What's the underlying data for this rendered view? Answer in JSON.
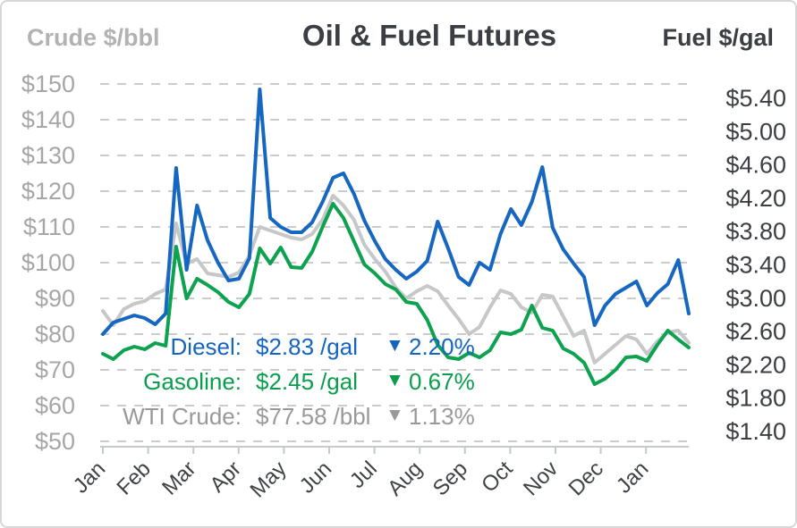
{
  "header": {
    "left_axis_title": "Crude $/bbl",
    "title": "Oil & Fuel Futures",
    "right_axis_title": "Fuel $/gal"
  },
  "legend": {
    "down_glyph": "▼",
    "rows": [
      {
        "name": "Diesel:",
        "value": "$2.83",
        "unit": "/gal",
        "direction": "down",
        "change": "2.20%",
        "color": "#1565c0"
      },
      {
        "name": "Gasoline:",
        "value": "$2.45",
        "unit": "/gal",
        "direction": "down",
        "change": "0.67%",
        "color": "#0b9d4e"
      },
      {
        "name": "WTI Crude:",
        "value": "$77.58",
        "unit": "/bbl",
        "direction": "down",
        "change": "1.13%",
        "color": "#97999c"
      }
    ]
  },
  "chart_data": {
    "type": "line",
    "title": "Oil & Fuel Futures",
    "grid": "dashed-horizontal",
    "resolution": "weekly",
    "x_axis": {
      "labels": [
        "Jan",
        "Feb",
        "Mar",
        "Apr",
        "May",
        "Jun",
        "Jul",
        "Aug",
        "Sep",
        "Oct",
        "Nov",
        "Dec",
        "Jan"
      ],
      "label_rotation_deg": -45
    },
    "left_axis": {
      "title": "Crude $/bbl",
      "ticks": [
        "$150",
        "$140",
        "$130",
        "$120",
        "$110",
        "$100",
        "$90",
        "$80",
        "$70",
        "$60",
        "$50"
      ],
      "range": [
        50,
        150
      ]
    },
    "right_axis": {
      "title": "Fuel $/gal",
      "ticks": [
        "$5.40",
        "$5.00",
        "$4.60",
        "$4.20",
        "$3.80",
        "$3.40",
        "$3.00",
        "$2.60",
        "$2.20",
        "$1.80",
        "$1.40"
      ],
      "range": [
        1.4,
        5.4
      ]
    },
    "series": [
      {
        "name": "WTI Crude",
        "unit": "$/bbl",
        "axis": "left",
        "color": "#c5c7c9",
        "values": [
          86.5,
          82.5,
          87,
          88.5,
          89.25,
          91.25,
          92.5,
          111,
          99.75,
          101,
          97,
          96.5,
          96,
          97.25,
          102,
          110,
          109,
          108,
          107,
          106.5,
          108,
          112,
          118.75,
          116,
          112,
          105,
          101,
          97.5,
          93,
          90,
          92,
          93.5,
          92,
          88,
          84.25,
          80,
          82,
          87.5,
          92.25,
          91.25,
          87.5,
          86,
          91,
          90.5,
          85,
          79.5,
          81,
          72,
          74.5,
          77,
          79.5,
          78.5,
          74.5,
          78,
          80.5,
          81,
          77.58
        ]
      },
      {
        "name": "Gasoline",
        "unit": "$/gal",
        "axis": "right",
        "color": "#0da24f",
        "values": [
          2.38,
          2.32,
          2.42,
          2.46,
          2.43,
          2.5,
          2.47,
          3.58,
          3.0,
          3.22,
          3.15,
          3.07,
          2.96,
          2.9,
          3.05,
          3.56,
          3.39,
          3.57,
          3.35,
          3.34,
          3.52,
          3.8,
          4.06,
          3.9,
          3.64,
          3.38,
          3.28,
          3.16,
          3.1,
          2.96,
          2.94,
          2.76,
          2.48,
          2.34,
          2.32,
          2.39,
          2.34,
          2.42,
          2.62,
          2.6,
          2.65,
          2.92,
          2.67,
          2.64,
          2.44,
          2.38,
          2.28,
          2.04,
          2.1,
          2.2,
          2.34,
          2.35,
          2.3,
          2.48,
          2.64,
          2.54,
          2.45
        ]
      },
      {
        "name": "Diesel",
        "unit": "$/gal",
        "axis": "right",
        "color": "#1667c1",
        "values": [
          2.6,
          2.73,
          2.77,
          2.81,
          2.78,
          2.71,
          2.83,
          4.46,
          3.32,
          4.04,
          3.65,
          3.4,
          3.2,
          3.22,
          3.45,
          5.34,
          3.9,
          3.8,
          3.74,
          3.74,
          3.85,
          4.08,
          4.35,
          4.4,
          4.17,
          3.87,
          3.64,
          3.44,
          3.32,
          3.22,
          3.3,
          3.42,
          3.86,
          3.56,
          3.24,
          3.15,
          3.4,
          3.32,
          3.72,
          4.0,
          3.82,
          4.08,
          4.47,
          3.79,
          3.55,
          3.39,
          3.24,
          2.7,
          2.92,
          3.05,
          3.12,
          3.19,
          2.92,
          3.06,
          3.16,
          3.43,
          2.83
        ]
      }
    ]
  }
}
